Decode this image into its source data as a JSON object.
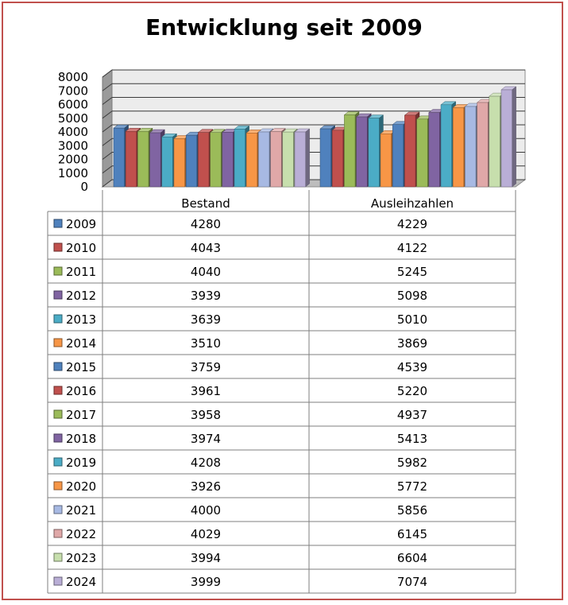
{
  "chart_data": {
    "type": "bar",
    "title": "Entwicklung seit 2009",
    "categories": [
      "Bestand",
      "Ausleihzahlen"
    ],
    "ylim": [
      0,
      8000
    ],
    "y_ticks": [
      "0",
      "1000",
      "2000",
      "3000",
      "4000",
      "5000",
      "6000",
      "7000",
      "8000"
    ],
    "grid": true,
    "legend": "data-table",
    "series": [
      {
        "name": "2009",
        "color": "#4f81bd",
        "values": [
          4280,
          4229
        ]
      },
      {
        "name": "2010",
        "color": "#c0504d",
        "values": [
          4043,
          4122
        ]
      },
      {
        "name": "2011",
        "color": "#9bbb59",
        "values": [
          4040,
          5245
        ]
      },
      {
        "name": "2012",
        "color": "#8064a2",
        "values": [
          3939,
          5098
        ]
      },
      {
        "name": "2013",
        "color": "#4bacc6",
        "values": [
          3639,
          5010
        ]
      },
      {
        "name": "2014",
        "color": "#f79646",
        "values": [
          3510,
          3869
        ]
      },
      {
        "name": "2015",
        "color": "#4f81bd",
        "values": [
          3759,
          4539
        ]
      },
      {
        "name": "2016",
        "color": "#c0504d",
        "values": [
          3961,
          5220
        ]
      },
      {
        "name": "2017",
        "color": "#9bbb59",
        "values": [
          3958,
          4937
        ]
      },
      {
        "name": "2018",
        "color": "#8064a2",
        "values": [
          3974,
          5413
        ]
      },
      {
        "name": "2019",
        "color": "#4bacc6",
        "values": [
          4208,
          5982
        ]
      },
      {
        "name": "2020",
        "color": "#f79646",
        "values": [
          3926,
          5772
        ]
      },
      {
        "name": "2021",
        "color": "#a7b9e3",
        "values": [
          4000,
          5856
        ]
      },
      {
        "name": "2022",
        "color": "#e0a8a8",
        "values": [
          4029,
          6145
        ]
      },
      {
        "name": "2023",
        "color": "#c7dfad",
        "values": [
          3994,
          6604
        ]
      },
      {
        "name": "2024",
        "color": "#b9aed6",
        "values": [
          3999,
          7074
        ]
      }
    ]
  }
}
